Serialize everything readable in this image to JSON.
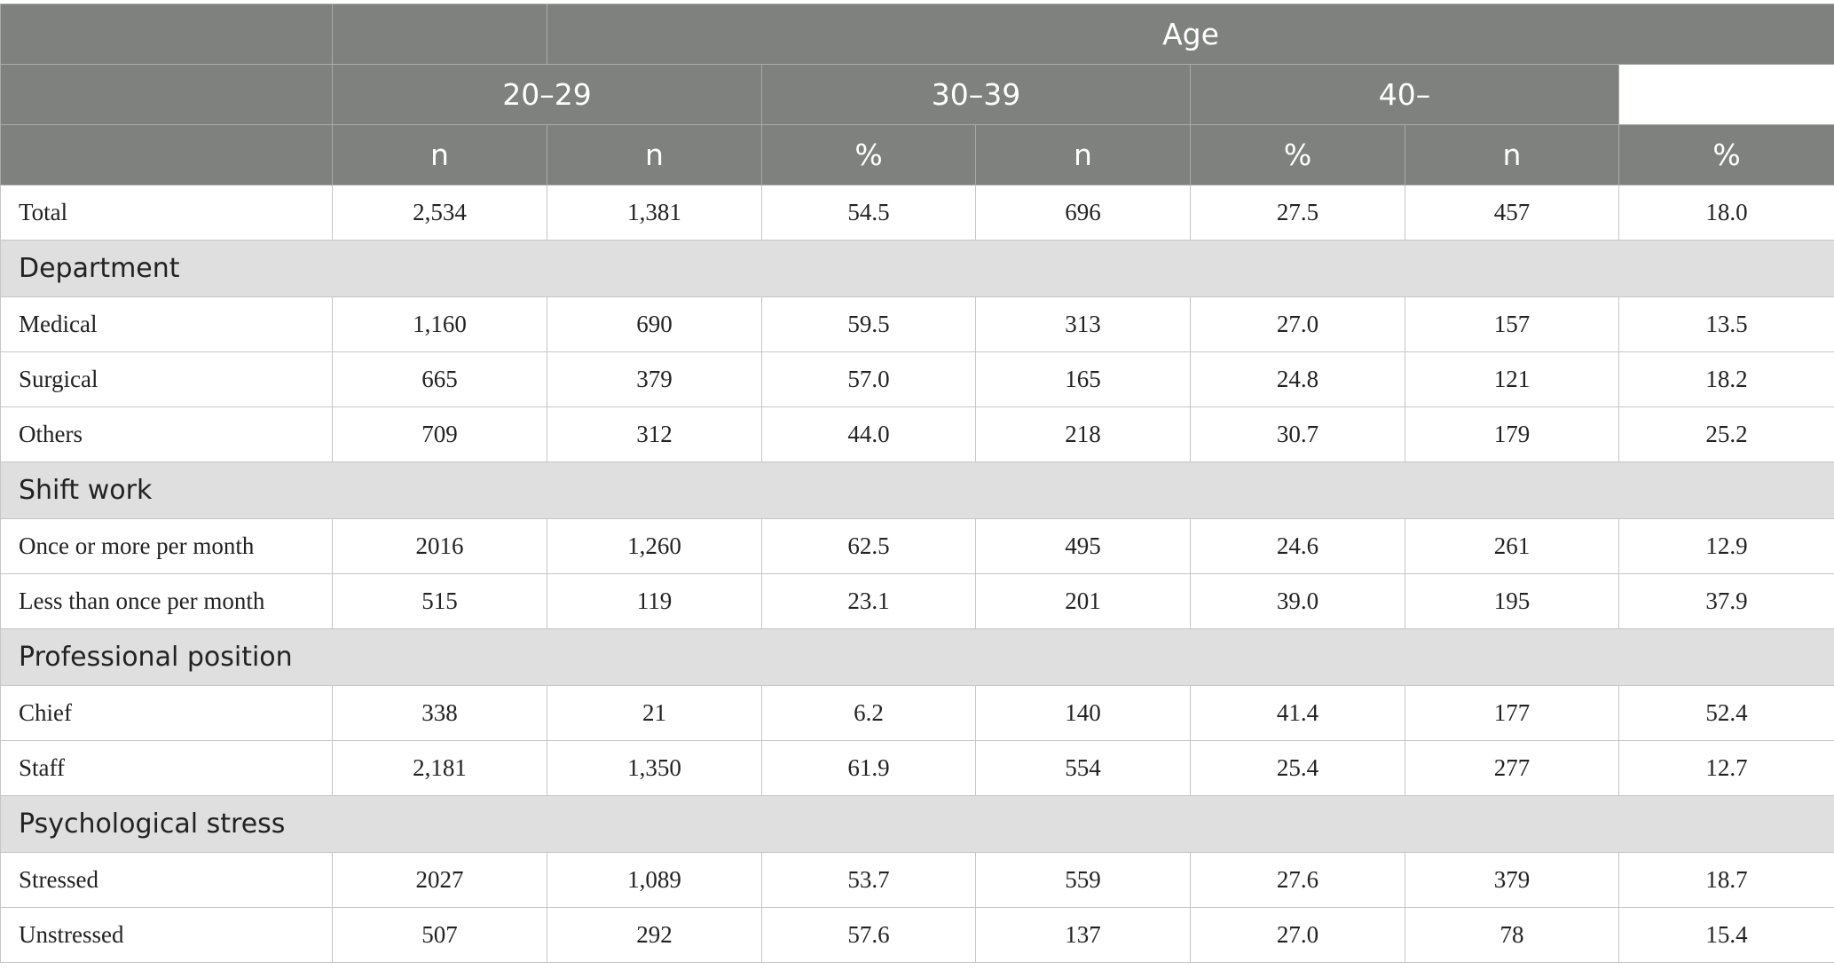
{
  "table": {
    "group_label": "Age",
    "groups": [
      "20–29",
      "30–39",
      "40–"
    ],
    "subheaders": [
      "n",
      "n",
      "%",
      "n",
      "%",
      "n",
      "%"
    ],
    "body": [
      {
        "label": "Total",
        "cells": [
          "2,534",
          "1,381",
          "54.5",
          "696",
          "27.5",
          "457",
          "18.0"
        ]
      },
      {
        "section": "Department"
      },
      {
        "label": "Medical",
        "cells": [
          "1,160",
          "690",
          "59.5",
          "313",
          "27.0",
          "157",
          "13.5"
        ]
      },
      {
        "label": "Surgical",
        "cells": [
          "665",
          "379",
          "57.0",
          "165",
          "24.8",
          "121",
          "18.2"
        ]
      },
      {
        "label": "Others",
        "cells": [
          "709",
          "312",
          "44.0",
          "218",
          "30.7",
          "179",
          "25.2"
        ]
      },
      {
        "section": "Shift work"
      },
      {
        "label": "Once or more per month",
        "cells": [
          "2016",
          "1,260",
          "62.5",
          "495",
          "24.6",
          "261",
          "12.9"
        ]
      },
      {
        "label": "Less than once per month",
        "cells": [
          "515",
          "119",
          "23.1",
          "201",
          "39.0",
          "195",
          "37.9"
        ]
      },
      {
        "section": "Professional position"
      },
      {
        "label": "Chief",
        "cells": [
          "338",
          "21",
          "6.2",
          "140",
          "41.4",
          "177",
          "52.4"
        ]
      },
      {
        "label": "Staff",
        "cells": [
          "2,181",
          "1,350",
          "61.9",
          "554",
          "25.4",
          "277",
          "12.7"
        ]
      },
      {
        "section": "Psychological stress"
      },
      {
        "label": "Stressed",
        "cells": [
          "2027",
          "1,089",
          "53.7",
          "559",
          "27.6",
          "379",
          "18.7"
        ]
      },
      {
        "label": "Unstressed",
        "cells": [
          "507",
          "292",
          "57.6",
          "137",
          "27.0",
          "78",
          "15.4"
        ]
      }
    ]
  }
}
